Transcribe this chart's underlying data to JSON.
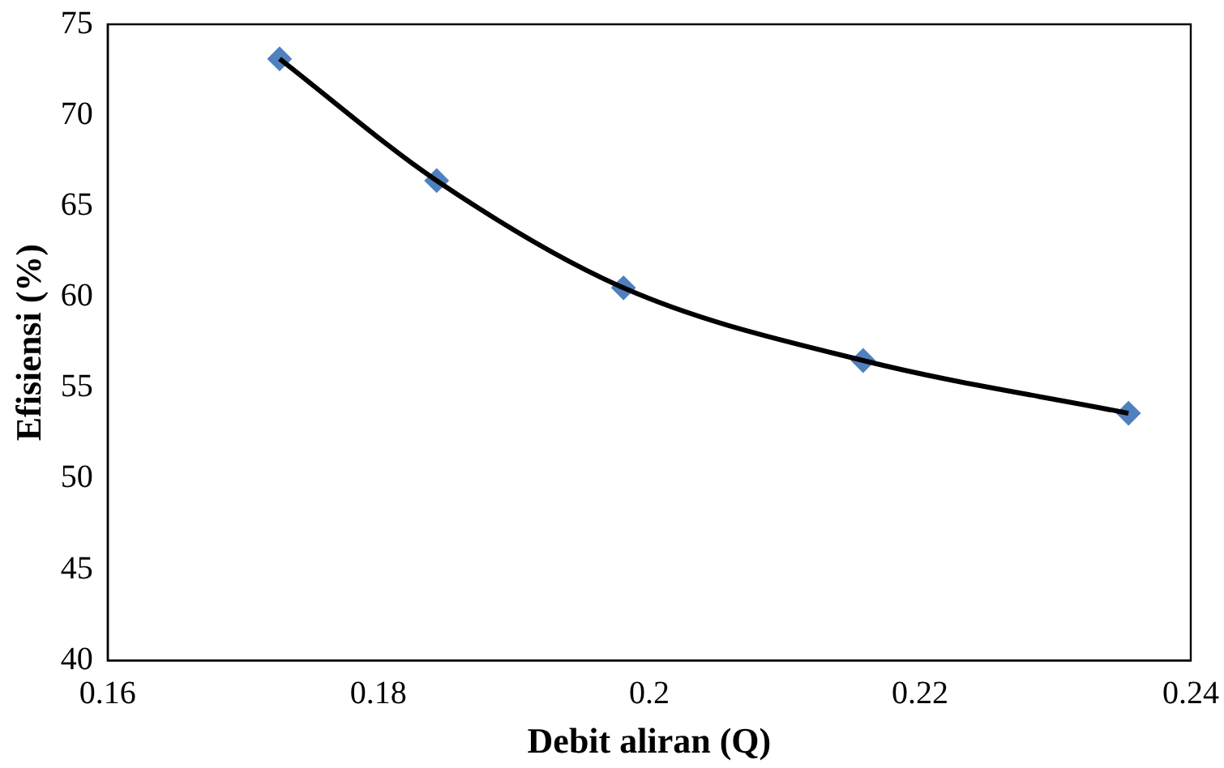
{
  "chart_data": {
    "type": "scatter",
    "xlabel": "Debit aliran (Q)",
    "ylabel": "Efisiensi (%)",
    "x": [
      0.1727,
      0.1843,
      0.1981,
      0.2158,
      0.2354
    ],
    "series": [
      {
        "type": "line",
        "color": "#000000",
        "marker": "none",
        "values": [
          73.1,
          66.4,
          60.5,
          56.5,
          53.6
        ]
      },
      {
        "type": "scatter",
        "color": "#4f81bd",
        "marker": "diamond",
        "values": [
          73.1,
          66.4,
          60.5,
          56.5,
          53.6
        ]
      }
    ],
    "xlim": [
      0.16,
      0.24
    ],
    "xticks": [
      0.16,
      0.18,
      0.2,
      0.22,
      0.24
    ],
    "ylim": [
      40,
      75
    ],
    "yticks": [
      40,
      45,
      50,
      55,
      60,
      65,
      70,
      75
    ],
    "grid": false,
    "legend": false
  }
}
